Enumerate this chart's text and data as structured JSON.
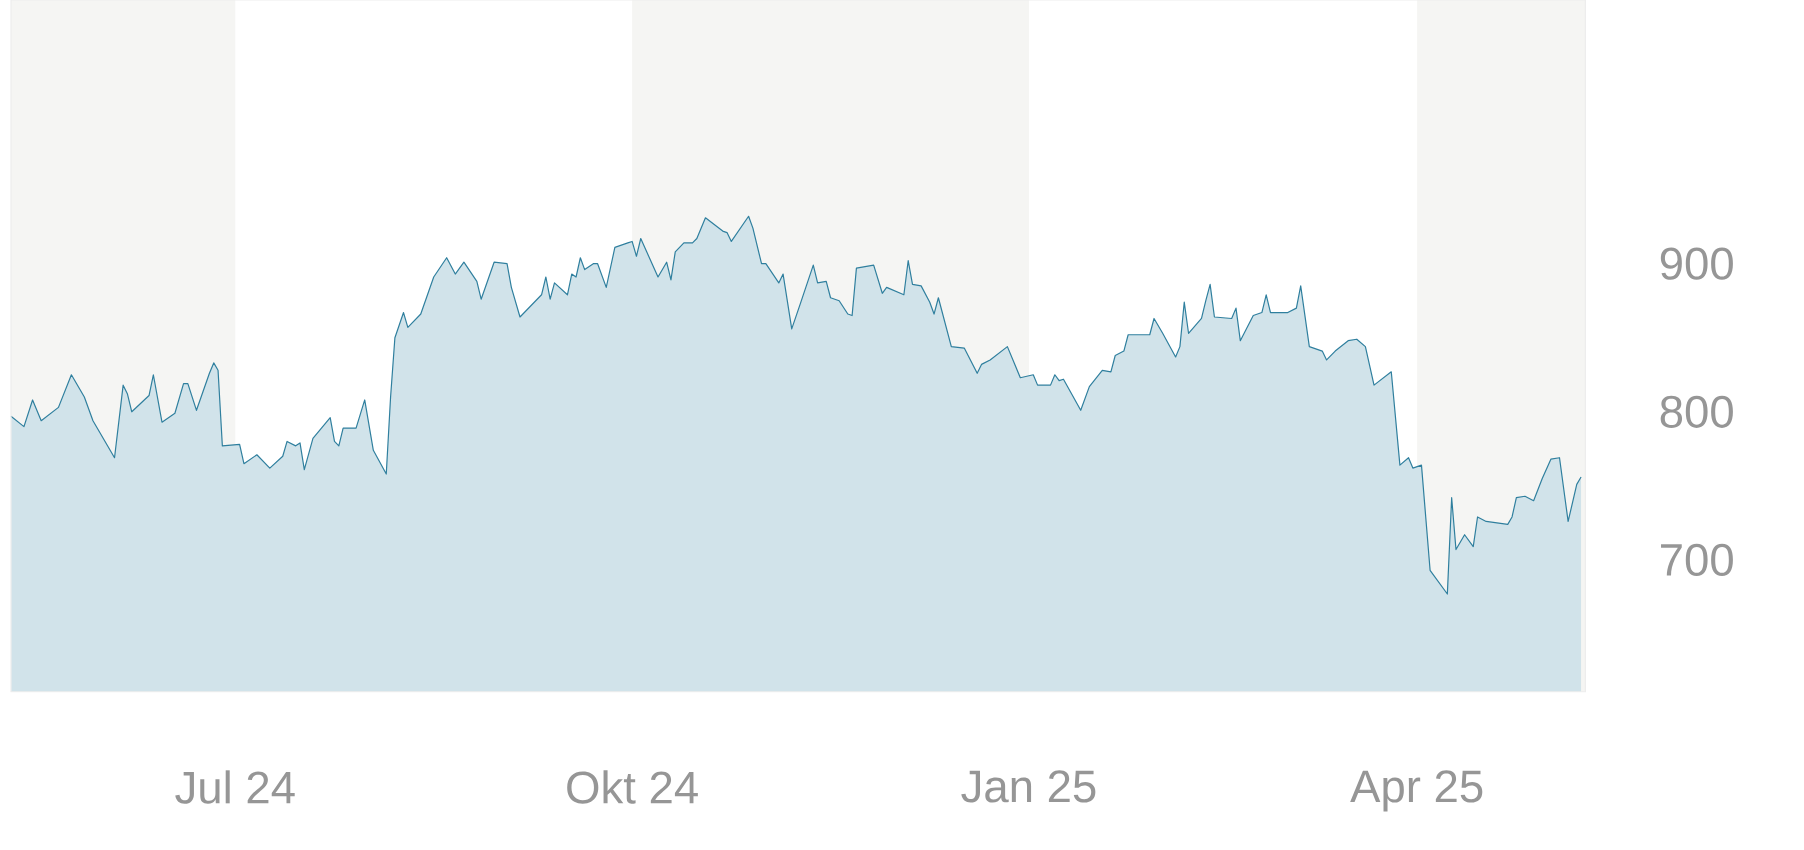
{
  "chart_data": {
    "type": "area",
    "color": "#2f7f9e",
    "x": [
      "2024-05-10",
      "2024-05-13",
      "2024-05-15",
      "2024-05-17",
      "2024-05-21",
      "2024-05-24",
      "2024-05-27",
      "2024-05-29",
      "2024-06-03",
      "2024-06-05",
      "2024-06-06",
      "2024-06-07",
      "2024-06-11",
      "2024-06-12",
      "2024-06-14",
      "2024-06-17",
      "2024-06-19",
      "2024-06-20",
      "2024-06-22",
      "2024-06-25",
      "2024-06-26",
      "2024-06-27",
      "2024-06-28",
      "2024-07-02",
      "2024-07-03",
      "2024-07-06",
      "2024-07-09",
      "2024-07-12",
      "2024-07-13",
      "2024-07-15",
      "2024-07-16",
      "2024-07-17",
      "2024-07-19",
      "2024-07-23",
      "2024-07-24",
      "2024-07-25",
      "2024-07-26",
      "2024-07-29",
      "2024-07-31",
      "2024-08-02",
      "2024-08-05",
      "2024-08-06",
      "2024-08-07",
      "2024-08-09",
      "2024-08-10",
      "2024-08-13",
      "2024-08-16",
      "2024-08-19",
      "2024-08-21",
      "2024-08-23",
      "2024-08-26",
      "2024-08-27",
      "2024-08-30",
      "2024-09-02",
      "2024-09-03",
      "2024-09-05",
      "2024-09-10",
      "2024-09-11",
      "2024-09-12",
      "2024-09-13",
      "2024-09-16",
      "2024-09-17",
      "2024-09-18",
      "2024-09-19",
      "2024-09-20",
      "2024-09-22",
      "2024-09-23",
      "2024-09-25",
      "2024-09-27",
      "2024-09-30",
      "2024-10-01",
      "2024-10-02",
      "2024-10-03",
      "2024-10-07",
      "2024-10-09",
      "2024-10-10",
      "2024-10-11",
      "2024-10-13",
      "2024-10-15",
      "2024-10-16",
      "2024-10-18",
      "2024-10-22",
      "2024-10-23",
      "2024-10-24",
      "2024-10-28",
      "2024-10-29",
      "2024-10-31",
      "2024-11-01",
      "2024-11-04",
      "2024-11-05",
      "2024-11-07",
      "2024-11-09",
      "2024-11-12",
      "2024-11-13",
      "2024-11-15",
      "2024-11-16",
      "2024-11-18",
      "2024-11-20",
      "2024-11-21",
      "2024-11-22",
      "2024-11-26",
      "2024-11-28",
      "2024-11-29",
      "2024-12-03",
      "2024-12-04",
      "2024-12-05",
      "2024-12-07",
      "2024-12-09",
      "2024-12-10",
      "2024-12-11",
      "2024-12-14",
      "2024-12-17",
      "2024-12-20",
      "2024-12-21",
      "2024-12-23",
      "2024-12-27",
      "2024-12-30",
      "2025-01-02",
      "2025-01-03",
      "2025-01-06",
      "2025-01-07",
      "2025-01-08",
      "2025-01-09",
      "2025-01-13",
      "2025-01-15",
      "2025-01-18",
      "2025-01-20",
      "2025-01-21",
      "2025-01-23",
      "2025-01-24",
      "2025-01-29",
      "2025-01-30",
      "2025-02-01",
      "2025-02-04",
      "2025-02-05",
      "2025-02-06",
      "2025-02-07",
      "2025-02-10",
      "2025-02-11",
      "2025-02-12",
      "2025-02-13",
      "2025-02-17",
      "2025-02-18",
      "2025-02-19",
      "2025-02-22",
      "2025-02-24",
      "2025-02-25",
      "2025-02-26",
      "2025-03-02",
      "2025-03-04",
      "2025-03-05",
      "2025-03-07",
      "2025-03-10",
      "2025-03-11",
      "2025-03-13",
      "2025-03-16",
      "2025-03-18",
      "2025-03-20",
      "2025-03-22",
      "2025-03-26",
      "2025-03-28",
      "2025-03-30",
      "2025-03-31",
      "2025-04-02",
      "2025-04-04",
      "2025-04-08",
      "2025-04-09",
      "2025-04-10",
      "2025-04-12",
      "2025-04-14",
      "2025-04-15",
      "2025-04-17",
      "2025-04-22",
      "2025-04-23",
      "2025-04-24",
      "2025-04-26",
      "2025-04-28",
      "2025-04-30",
      "2025-05-02",
      "2025-05-04",
      "2025-05-06",
      "2025-05-08",
      "2025-05-09"
    ],
    "values": [
      797,
      790,
      808,
      794,
      803,
      825,
      810,
      794,
      769,
      818,
      812,
      800,
      811,
      825,
      793,
      799,
      819,
      819,
      801,
      826,
      833,
      828,
      777,
      778,
      765,
      771,
      762,
      770,
      780,
      777,
      779,
      761,
      782,
      796,
      780,
      777,
      789,
      789,
      808,
      774,
      758,
      810,
      850,
      867,
      857,
      866,
      891,
      904,
      893,
      901,
      888,
      876,
      901,
      900,
      884,
      864,
      879,
      891,
      876,
      887,
      879,
      893,
      891,
      904,
      896,
      900,
      900,
      884,
      911,
      914,
      915,
      905,
      917,
      891,
      901,
      889,
      908,
      914,
      914,
      917,
      931,
      922,
      921,
      915,
      932,
      924,
      900,
      900,
      887,
      893,
      856,
      873,
      899,
      887,
      888,
      877,
      875,
      866,
      865,
      897,
      899,
      880,
      884,
      879,
      902,
      886,
      885,
      874,
      866,
      877,
      844,
      843,
      826,
      832,
      835,
      844,
      823,
      825,
      818,
      818,
      825,
      821,
      822,
      801,
      817,
      828,
      827,
      838,
      841,
      852,
      852,
      863,
      853,
      837,
      844,
      874,
      853,
      863,
      875,
      886,
      864,
      863,
      870,
      848,
      865,
      867,
      879,
      867,
      867,
      870,
      885,
      844,
      841,
      835,
      841,
      848,
      849,
      844,
      818,
      827,
      764,
      769,
      762,
      764,
      693,
      677,
      742,
      707,
      717,
      709,
      729,
      726,
      724,
      729,
      742,
      743,
      740,
      755,
      768,
      769,
      726,
      751,
      756
    ],
    "xlim": [
      "2024-05-10",
      "2025-05-10"
    ],
    "xticks": [
      {
        "value": "2024-07-01",
        "label": "Jul 24"
      },
      {
        "value": "2024-10-01",
        "label": "Okt 24"
      },
      {
        "value": "2025-01-01",
        "label": "Jan 25"
      },
      {
        "value": "2025-04-01",
        "label": "Apr 25"
      }
    ],
    "ylim": [
      611,
      1078
    ],
    "yticks": [
      700,
      800,
      900
    ],
    "bands": [
      {
        "axis": "x",
        "from": "2024-05-10",
        "to": "2024-07-01",
        "color": "#f5f5f3"
      },
      {
        "axis": "x",
        "from": "2024-10-01",
        "to": "2025-01-01",
        "color": "#f5f5f3"
      },
      {
        "axis": "x",
        "from": "2025-04-01",
        "to": "2025-05-10",
        "color": "#f5f5f3"
      }
    ]
  }
}
